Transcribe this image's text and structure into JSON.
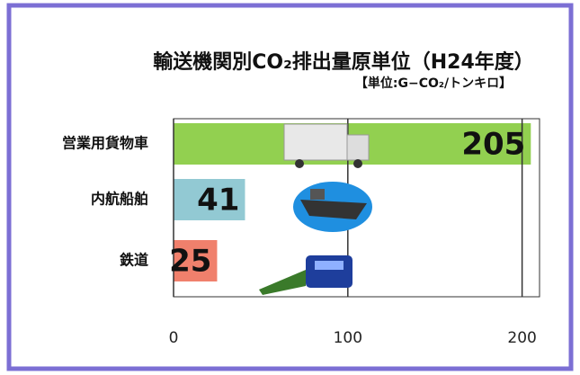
{
  "chart_data": {
    "type": "hbar",
    "title": "輸送機関別CO₂排出量原単位（H24年度）",
    "subtitle": "【単位:G−CO₂/トンキロ】",
    "categories": [
      "営業用貨物車",
      "内航船舶",
      "鉄道"
    ],
    "values": [
      205,
      41,
      25
    ],
    "colors": [
      "#92d050",
      "#92c9d3",
      "#f0806c"
    ],
    "xlim": [
      0,
      210
    ],
    "xticks": [
      0,
      100,
      200
    ],
    "grid": true
  }
}
